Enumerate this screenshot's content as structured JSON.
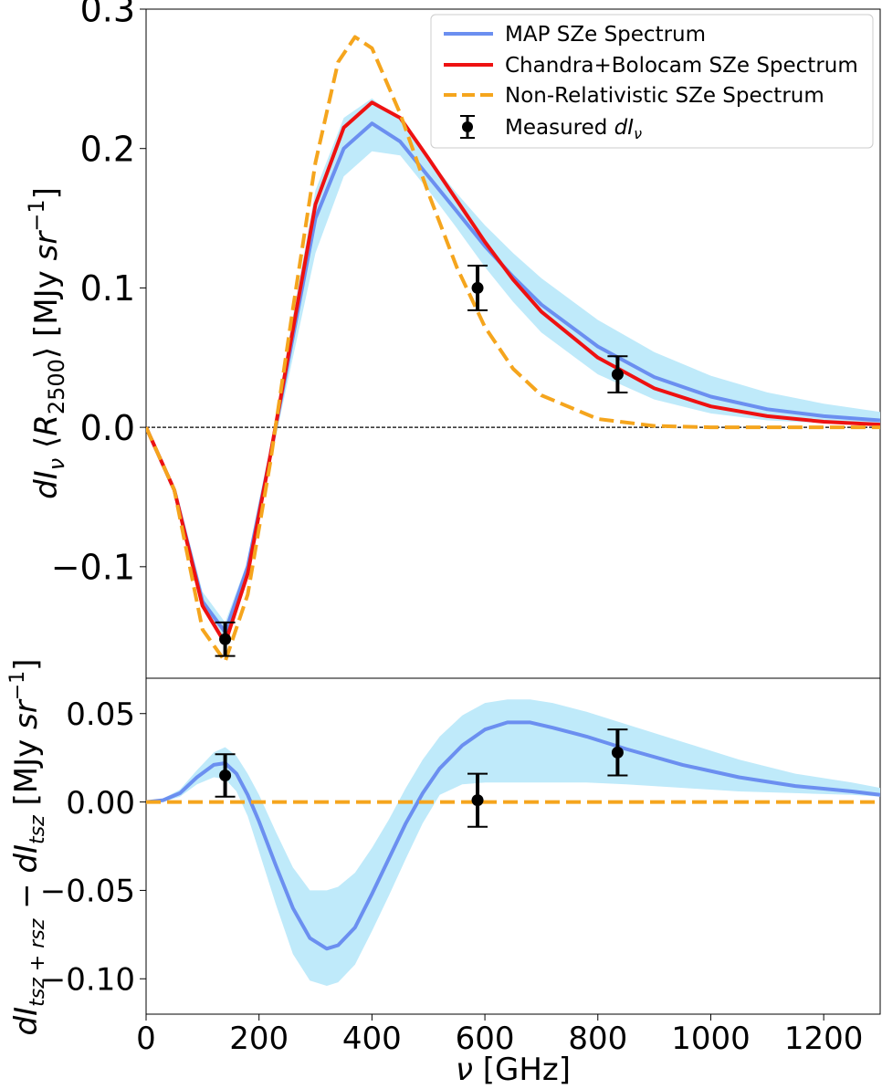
{
  "chart_data": [
    {
      "type": "line",
      "xlim": [
        0,
        1300
      ],
      "ylim": [
        -0.18,
        0.3
      ],
      "yticks": [
        {
          "value": 0.3,
          "label": "0.3"
        },
        {
          "value": 0.2,
          "label": "0.2"
        },
        {
          "value": 0.1,
          "label": "0.1"
        },
        {
          "value": 0.0,
          "label": "0.0"
        },
        {
          "value": -0.1,
          "label": "−0.1"
        }
      ],
      "ylabel": "dIν ⟨R2500⟩ [MJy sr⁻¹]",
      "ylabel_parts": {
        "d": "d",
        "I": "I",
        "nu": "ν",
        "open": " ⟨",
        "R": "R",
        "sub": "2500",
        "close": "⟩ [MJy ",
        "sr": "sr",
        "sup": "−1",
        "end": "]"
      },
      "zero_line": true,
      "legend": {
        "position": "upper right",
        "entries": [
          {
            "label": "MAP SZe Spectrum",
            "color": "#6b8ff0",
            "style": "solid"
          },
          {
            "label": "Chandra+Bolocam SZe Spectrum",
            "color": "#ee1111",
            "style": "solid"
          },
          {
            "label": "Non-Relativistic SZe Spectrum",
            "color": "#f5a51d",
            "style": "dashed"
          },
          {
            "label": "Measured",
            "label_math": "dI",
            "label_sub": "ν",
            "color": "#000000",
            "style": "errorbar"
          }
        ]
      },
      "series": [
        {
          "name": "MAP SZe Spectrum",
          "color": "#6b8ff0",
          "style": "solid",
          "x": [
            0,
            50,
            100,
            140,
            180,
            220,
            260,
            300,
            350,
            400,
            450,
            500,
            550,
            600,
            650,
            700,
            800,
            900,
            1000,
            1100,
            1200,
            1300
          ],
          "y": [
            0,
            -0.045,
            -0.125,
            -0.147,
            -0.1,
            -0.02,
            0.065,
            0.15,
            0.2,
            0.218,
            0.205,
            0.18,
            0.155,
            0.13,
            0.108,
            0.088,
            0.058,
            0.036,
            0.022,
            0.013,
            0.008,
            0.005
          ],
          "band_lower": [
            0,
            -0.042,
            -0.118,
            -0.14,
            -0.096,
            -0.025,
            0.05,
            0.125,
            0.18,
            0.198,
            0.195,
            0.17,
            0.143,
            0.115,
            0.09,
            0.068,
            0.038,
            0.02,
            0.01,
            0.005,
            0.003,
            0.002
          ],
          "band_upper": [
            0,
            -0.048,
            -0.13,
            -0.154,
            -0.104,
            -0.015,
            0.08,
            0.17,
            0.222,
            0.236,
            0.22,
            0.193,
            0.168,
            0.145,
            0.125,
            0.107,
            0.077,
            0.054,
            0.037,
            0.025,
            0.017,
            0.011
          ]
        },
        {
          "name": "Chandra+Bolocam SZe Spectrum",
          "color": "#ee1111",
          "style": "solid",
          "x": [
            0,
            50,
            100,
            140,
            180,
            220,
            260,
            300,
            350,
            400,
            450,
            500,
            550,
            600,
            650,
            700,
            800,
            900,
            1000,
            1100,
            1200,
            1300
          ],
          "y": [
            0,
            -0.045,
            -0.128,
            -0.155,
            -0.105,
            -0.02,
            0.07,
            0.16,
            0.215,
            0.233,
            0.222,
            0.193,
            0.163,
            0.133,
            0.106,
            0.083,
            0.05,
            0.028,
            0.015,
            0.008,
            0.004,
            0.002
          ]
        },
        {
          "name": "Non-Relativistic SZe Spectrum",
          "color": "#f5a51d",
          "style": "dashed",
          "x": [
            0,
            50,
            100,
            140,
            180,
            220,
            260,
            300,
            340,
            370,
            400,
            450,
            500,
            550,
            600,
            650,
            700,
            800,
            900,
            1000,
            1100,
            1200,
            1300
          ],
          "y": [
            0,
            -0.045,
            -0.145,
            -0.168,
            -0.12,
            -0.025,
            0.085,
            0.19,
            0.262,
            0.28,
            0.272,
            0.225,
            0.168,
            0.115,
            0.072,
            0.042,
            0.023,
            0.006,
            0.001,
            0.0,
            0.0,
            0.0,
            0.0
          ]
        }
      ],
      "points": {
        "name": "Measured dIν",
        "x": [
          140,
          587,
          835
        ],
        "y": [
          -0.152,
          0.1,
          0.038
        ],
        "err": [
          0.012,
          0.016,
          0.013
        ]
      }
    },
    {
      "type": "line",
      "xlim": [
        0,
        1300
      ],
      "ylim": [
        -0.12,
        0.07
      ],
      "xticks": [
        {
          "value": 0,
          "label": "0"
        },
        {
          "value": 200,
          "label": "200"
        },
        {
          "value": 400,
          "label": "400"
        },
        {
          "value": 600,
          "label": "600"
        },
        {
          "value": 800,
          "label": "800"
        },
        {
          "value": 1000,
          "label": "1000"
        },
        {
          "value": 1200,
          "label": "1200"
        }
      ],
      "yticks": [
        {
          "value": 0.05,
          "label": "0.05"
        },
        {
          "value": 0.0,
          "label": "0.00"
        },
        {
          "value": -0.05,
          "label": "−0.05"
        },
        {
          "value": -0.1,
          "label": "−0.10"
        }
      ],
      "xlabel": "ν [GHz]",
      "xlabel_parts": {
        "nu": "ν",
        "rest": " [GHz]"
      },
      "ylabel": "dItsz+rsz − dItsz [MJy sr⁻¹]",
      "ylabel_parts": {
        "d1": "d",
        "I1": "I",
        "sub1": "tsz + rsz",
        "minus": " − ",
        "d2": "d",
        "I2": "I",
        "sub2": "tsz",
        "mid": " [MJy ",
        "sr": "sr",
        "sup": "−1",
        "end": "]"
      },
      "series": [
        {
          "name": "MAP SZe Spectrum",
          "color": "#6b8ff0",
          "style": "solid",
          "x": [
            0,
            30,
            60,
            90,
            120,
            140,
            160,
            180,
            200,
            230,
            260,
            290,
            320,
            340,
            370,
            400,
            430,
            460,
            490,
            520,
            560,
            600,
            640,
            680,
            720,
            780,
            850,
            950,
            1050,
            1150,
            1250,
            1300
          ],
          "y": [
            0,
            0.001,
            0.005,
            0.014,
            0.021,
            0.022,
            0.016,
            0.004,
            -0.011,
            -0.036,
            -0.06,
            -0.077,
            -0.083,
            -0.081,
            -0.071,
            -0.052,
            -0.032,
            -0.012,
            0.005,
            0.019,
            0.032,
            0.041,
            0.045,
            0.045,
            0.042,
            0.037,
            0.03,
            0.021,
            0.014,
            0.009,
            0.006,
            0.004
          ],
          "band_lower": [
            0,
            0.0,
            0.003,
            0.01,
            0.014,
            0.013,
            0.006,
            -0.008,
            -0.028,
            -0.058,
            -0.086,
            -0.101,
            -0.104,
            -0.102,
            -0.092,
            -0.073,
            -0.053,
            -0.032,
            -0.012,
            0.004,
            0.01,
            0.011,
            0.011,
            0.011,
            0.011,
            0.011,
            0.01,
            0.008,
            0.006,
            0.005,
            0.004,
            0.003
          ],
          "band_upper": [
            0,
            0.002,
            0.007,
            0.018,
            0.028,
            0.031,
            0.026,
            0.016,
            0.004,
            -0.017,
            -0.037,
            -0.05,
            -0.05,
            -0.048,
            -0.04,
            -0.026,
            -0.01,
            0.008,
            0.024,
            0.037,
            0.049,
            0.056,
            0.058,
            0.058,
            0.056,
            0.051,
            0.044,
            0.034,
            0.024,
            0.016,
            0.011,
            0.008
          ]
        },
        {
          "name": "Non-Relativistic SZe Spectrum",
          "color": "#f5a51d",
          "style": "dashed",
          "x": [
            0,
            1300
          ],
          "y": [
            0,
            0
          ]
        }
      ],
      "points": {
        "name": "Measured dIν",
        "x": [
          140,
          587,
          835
        ],
        "y": [
          0.015,
          0.001,
          0.028
        ],
        "err": [
          0.012,
          0.015,
          0.013
        ]
      }
    }
  ]
}
